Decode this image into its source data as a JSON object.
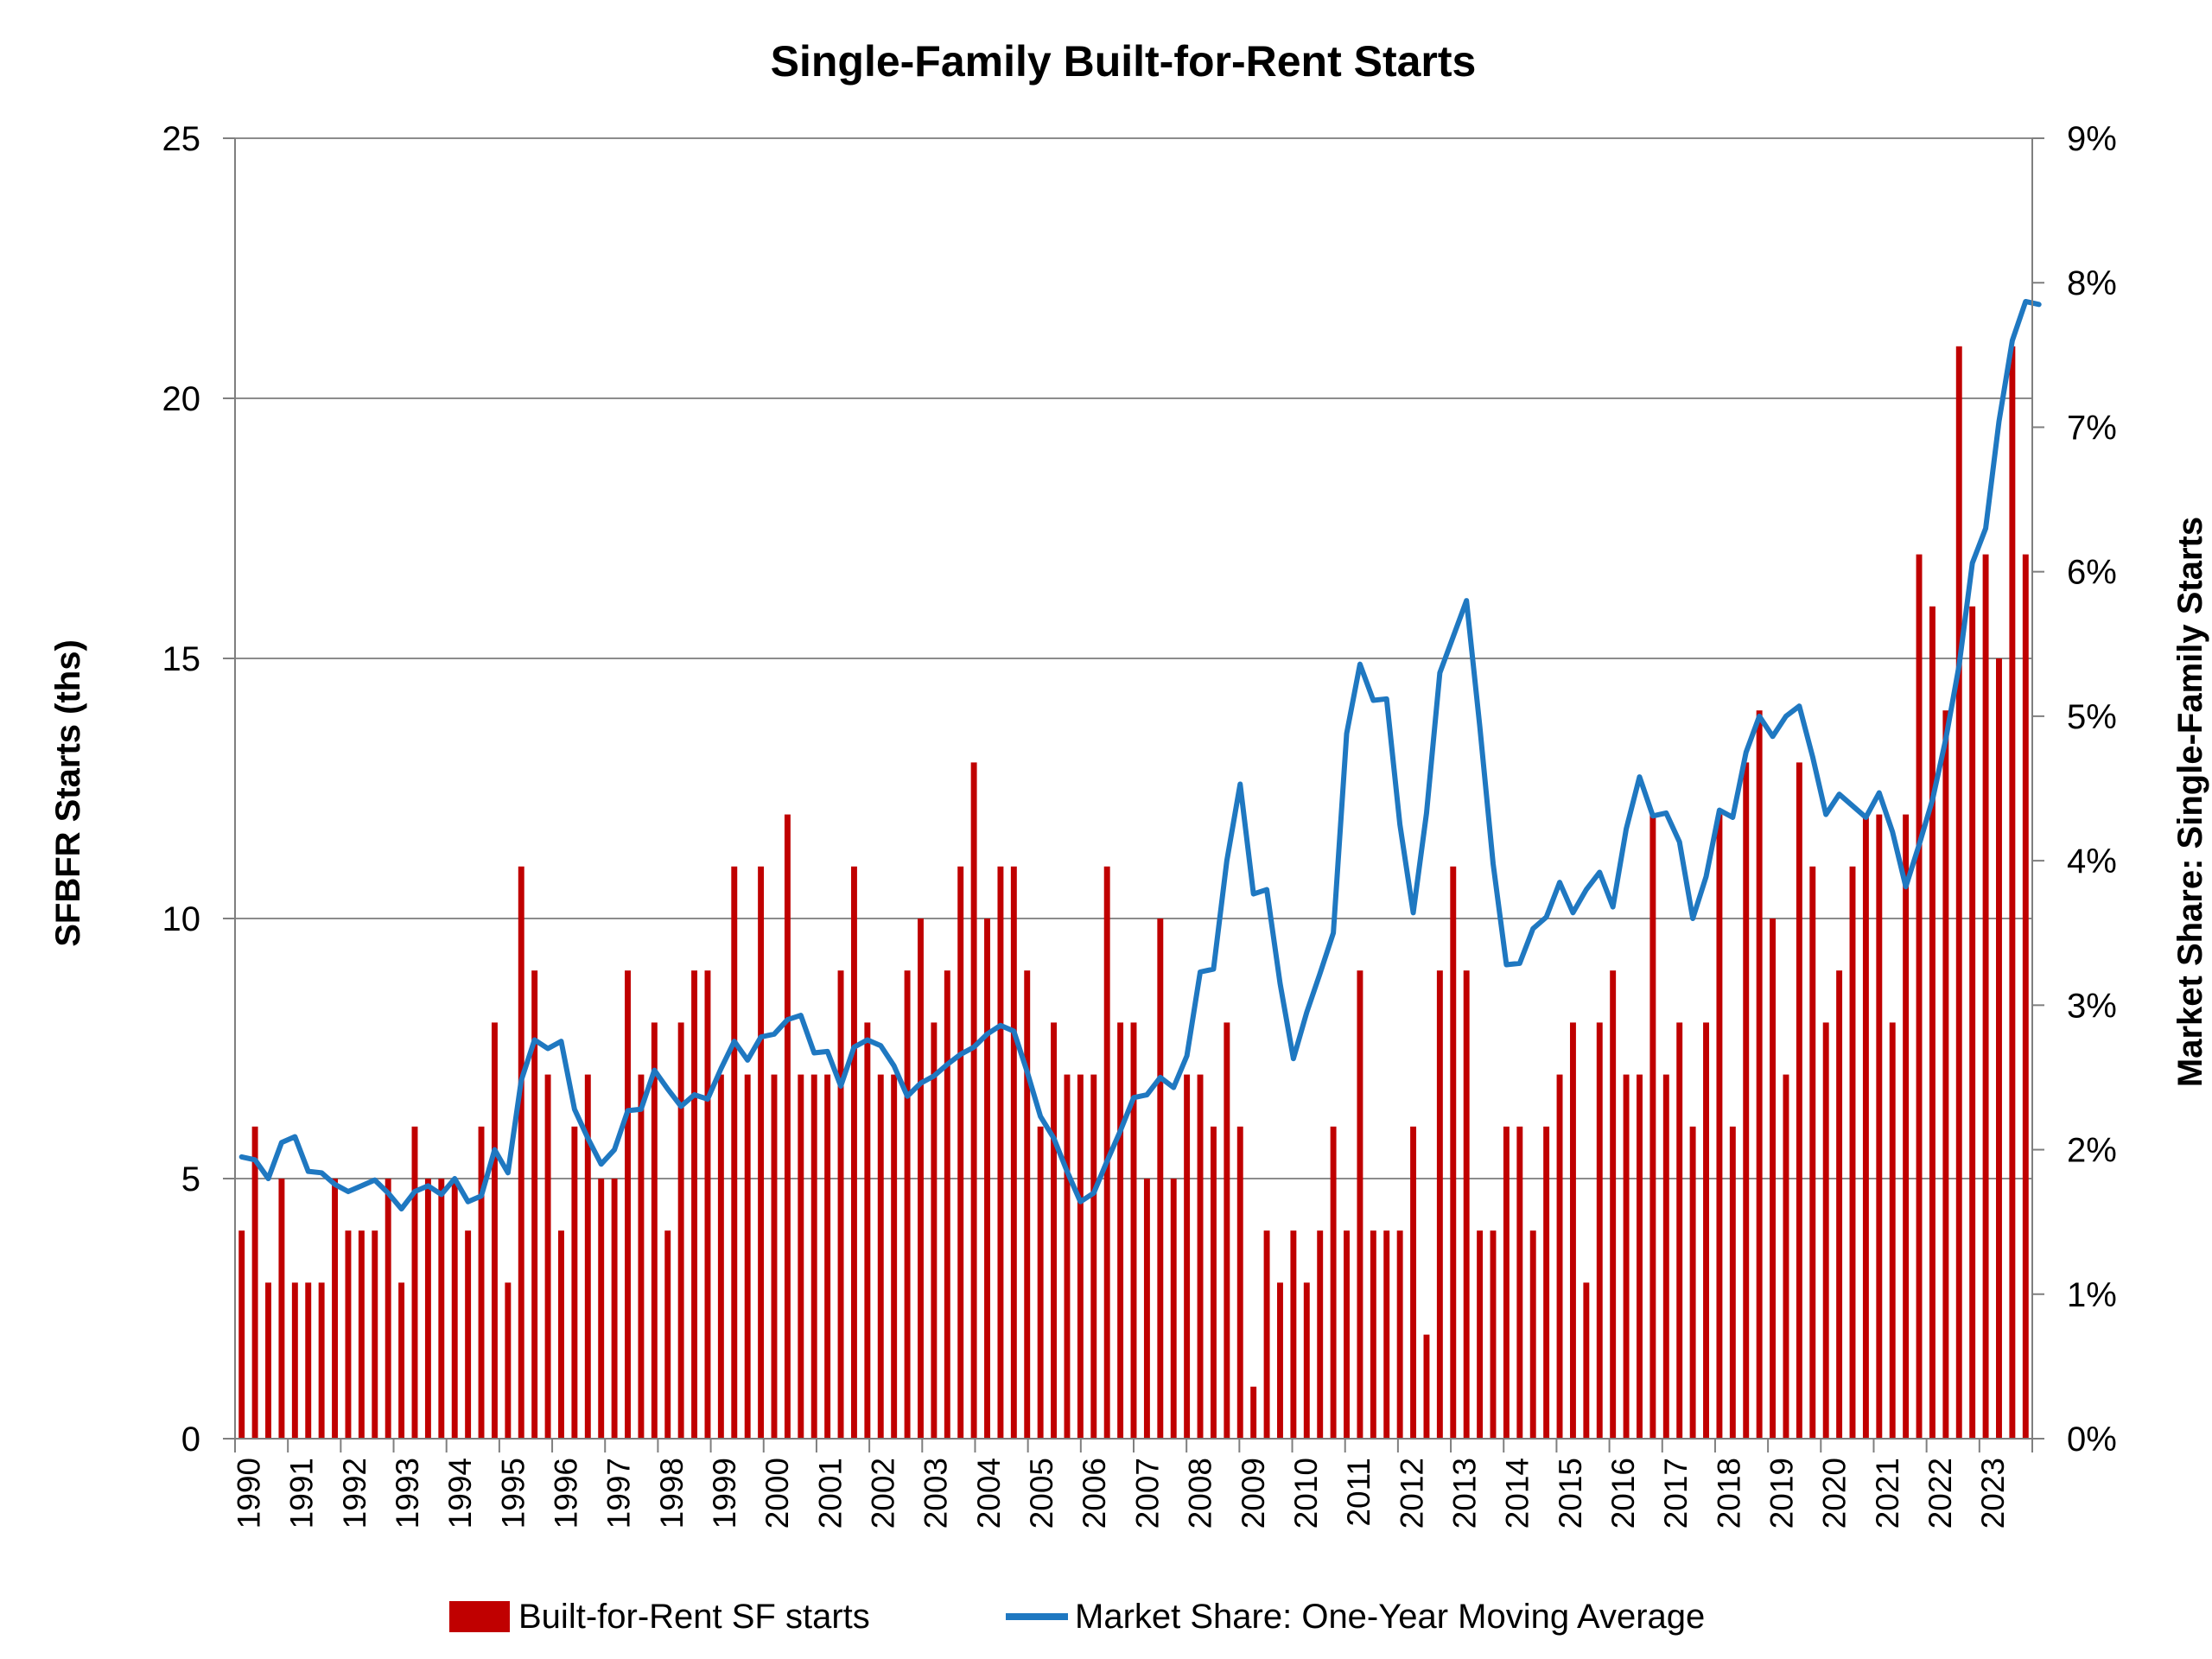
{
  "chart_data": {
    "type": "bar",
    "title": "Single-Family Built-for-Rent Starts",
    "ylabel": "SFBFR Starts (ths)",
    "y2label": "Market Share: Single-Family Starts",
    "ylim": [
      0,
      25
    ],
    "y2lim": [
      0,
      0.09
    ],
    "y_ticks": [
      "0",
      "5",
      "10",
      "15",
      "20",
      "25"
    ],
    "y2_ticks": [
      "0%",
      "1%",
      "2%",
      "3%",
      "4%",
      "5%",
      "6%",
      "7%",
      "8%",
      "9%"
    ],
    "years": [
      "1990",
      "1991",
      "1992",
      "1993",
      "1994",
      "1995",
      "1996",
      "1997",
      "1998",
      "1999",
      "2000",
      "2001",
      "2002",
      "2003",
      "2004",
      "2005",
      "2006",
      "2007",
      "2008",
      "2009",
      "2010",
      "2011",
      "2012",
      "2013",
      "2014",
      "2015",
      "2016",
      "2017",
      "2018",
      "2019",
      "2020",
      "2021",
      "2022",
      "2023"
    ],
    "grid": "horizontal",
    "legend_position": "bottom",
    "series": [
      {
        "name": "Built-for-Rent SF starts",
        "type": "bar",
        "axis": "left",
        "color": "#C00000",
        "values": [
          4,
          6,
          3,
          5,
          3,
          3,
          3,
          5,
          4,
          4,
          4,
          5,
          3,
          6,
          5,
          5,
          5,
          4,
          6,
          8,
          3,
          11,
          9,
          7,
          4,
          6,
          7,
          5,
          5,
          9,
          7,
          8,
          4,
          8,
          9,
          9,
          7,
          11,
          7,
          11,
          7,
          12,
          7,
          7,
          7,
          9,
          11,
          8,
          7,
          7,
          9,
          10,
          8,
          9,
          11,
          13,
          10,
          11,
          11,
          9,
          6,
          8,
          7,
          7,
          7,
          11,
          8,
          8,
          5,
          10,
          5,
          7,
          7,
          6,
          8,
          6,
          1,
          4,
          3,
          4,
          3,
          4,
          6,
          4,
          9,
          4,
          4,
          4,
          6,
          2,
          9,
          11,
          9,
          4,
          4,
          6,
          6,
          4,
          6,
          7,
          8,
          3,
          8,
          9,
          7,
          7,
          12,
          7,
          8,
          6,
          8,
          12,
          6,
          13,
          14,
          10,
          7,
          13,
          11,
          8,
          9,
          11,
          12,
          12,
          8,
          12,
          17,
          16,
          14,
          21,
          16,
          17,
          15,
          21,
          17
        ]
      },
      {
        "name": "Market Share: One-Year Moving Average",
        "type": "line",
        "axis": "right",
        "color": "#1F78C1",
        "values": [
          0.0195,
          0.0193,
          0.018,
          0.0205,
          0.0209,
          0.0185,
          0.0184,
          0.0176,
          0.0171,
          0.0175,
          0.0179,
          0.017,
          0.0159,
          0.0171,
          0.0175,
          0.0169,
          0.018,
          0.0164,
          0.0168,
          0.02,
          0.0184,
          0.0248,
          0.0276,
          0.027,
          0.0275,
          0.0228,
          0.0208,
          0.019,
          0.02,
          0.0227,
          0.0228,
          0.0255,
          0.0242,
          0.023,
          0.0238,
          0.0235,
          0.0256,
          0.0275,
          0.0262,
          0.0278,
          0.028,
          0.029,
          0.0293,
          0.0267,
          0.0268,
          0.0244,
          0.0271,
          0.0276,
          0.0272,
          0.0258,
          0.0237,
          0.0246,
          0.0251,
          0.0259,
          0.0266,
          0.0271,
          0.028,
          0.0286,
          0.0282,
          0.0254,
          0.0223,
          0.0208,
          0.0185,
          0.0164,
          0.017,
          0.0192,
          0.0213,
          0.0236,
          0.0238,
          0.025,
          0.0243,
          0.0265,
          0.0323,
          0.0325,
          0.04,
          0.0453,
          0.0377,
          0.038,
          0.0315,
          0.0263,
          0.0295,
          0.0322,
          0.035,
          0.0488,
          0.0536,
          0.0511,
          0.0512,
          0.0425,
          0.0364,
          0.0433,
          0.053,
          0.0555,
          0.058,
          0.0493,
          0.0398,
          0.0328,
          0.0329,
          0.0353,
          0.0361,
          0.0385,
          0.0364,
          0.038,
          0.0392,
          0.0368,
          0.0422,
          0.0458,
          0.0431,
          0.0433,
          0.0413,
          0.036,
          0.0389,
          0.0435,
          0.043,
          0.0475,
          0.05,
          0.0486,
          0.05,
          0.0507,
          0.0472,
          0.0432,
          0.0446,
          0.0438,
          0.043,
          0.0447,
          0.042,
          0.0382,
          0.0411,
          0.0442,
          0.0484,
          0.0535,
          0.0606,
          0.063,
          0.0704,
          0.076,
          0.0787,
          0.0785
        ]
      }
    ]
  }
}
